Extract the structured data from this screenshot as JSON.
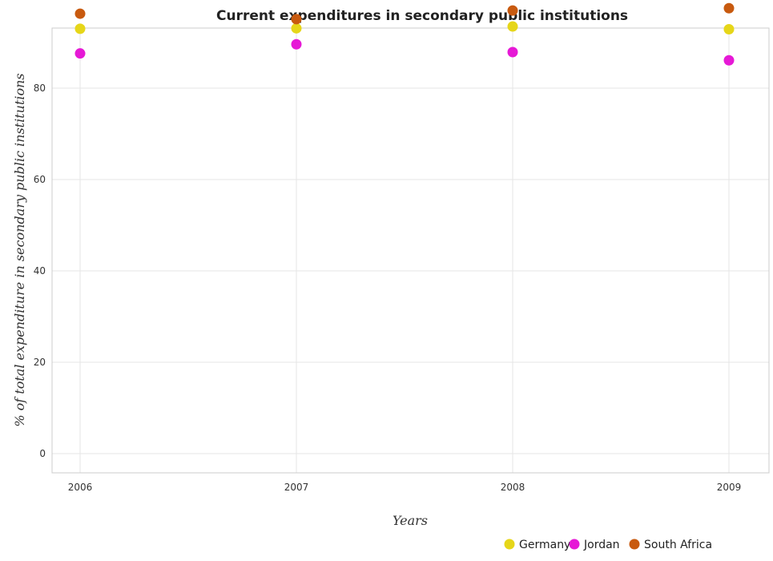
{
  "chart_data": {
    "type": "scatter",
    "title": "Current expenditures in secondary public institutions",
    "xlabel": "Years",
    "ylabel": "% of total expenditure in secondary public institutions",
    "categories": [
      "2006",
      "2007",
      "2008",
      "2009"
    ],
    "ylim": [
      0,
      100
    ],
    "yticks": [
      0,
      20,
      40,
      60,
      80
    ],
    "grid": true,
    "legend_position": "bottom-right",
    "series": [
      {
        "name": "Germany",
        "color": "#e6d619",
        "values": [
          93.0,
          93.1,
          93.5,
          92.9
        ]
      },
      {
        "name": "Jordan",
        "color": "#e619d6",
        "values": [
          87.6,
          89.6,
          87.9,
          86.1
        ]
      },
      {
        "name": "South Africa",
        "color": "#c85a0f",
        "values": [
          96.3,
          95.1,
          97.0,
          97.5
        ]
      }
    ]
  }
}
